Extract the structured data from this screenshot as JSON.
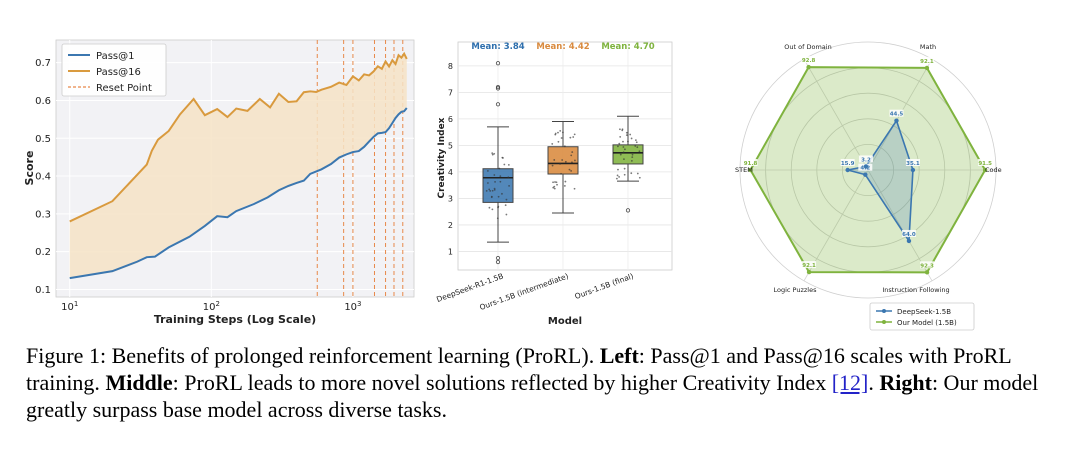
{
  "caption": {
    "figure_label": "Figure 1:",
    "intro": "Benefits of prolonged reinforcement learning (ProRL).",
    "left_label": "Left",
    "left_text": ": Pass@1 and Pass@16 scales with ProRL training.",
    "middle_label": "Middle",
    "middle_text": ": ProRL leads to more novel solutions reflected by higher Creativity Index",
    "ref": "[12]",
    "after_ref": ".",
    "right_label": "Right",
    "right_text": ": Our model greatly surpass base model across diverse tasks."
  },
  "chart_data": [
    {
      "type": "line",
      "title": "",
      "xlabel": "Training Steps (Log Scale)",
      "ylabel": "Score",
      "xscale": "log",
      "xlim": [
        8,
        2700
      ],
      "ylim": [
        0.08,
        0.76
      ],
      "x_ticks": [
        10,
        100,
        1000
      ],
      "x_tick_labels": [
        "10",
        "10",
        "10"
      ],
      "x_tick_exponents": [
        "1",
        "2",
        "3"
      ],
      "y_ticks": [
        0.1,
        0.2,
        0.3,
        0.4,
        0.5,
        0.6,
        0.7
      ],
      "y_tick_labels": [
        "0.1",
        "0.2",
        "0.3",
        "0.4",
        "0.5",
        "0.6",
        "0.7"
      ],
      "grid": true,
      "legend_position": "top-left",
      "legend": [
        "Pass@1",
        "Pass@16",
        "Reset Point"
      ],
      "reset_points": [
        560,
        860,
        1000,
        1420,
        1700,
        1950,
        2250
      ],
      "series": [
        {
          "name": "Pass@1",
          "color": "#3b77b0",
          "x": [
            10,
            20,
            30,
            35,
            40,
            50,
            70,
            90,
            110,
            130,
            150,
            200,
            250,
            300,
            350,
            400,
            450,
            500,
            600,
            700,
            800,
            900,
            1000,
            1100,
            1200,
            1300,
            1400,
            1500,
            1600,
            1700,
            1800,
            1900,
            2000,
            2100,
            2200,
            2300,
            2400
          ],
          "y": [
            0.13,
            0.145,
            0.17,
            0.185,
            0.19,
            0.215,
            0.24,
            0.265,
            0.29,
            0.29,
            0.31,
            0.33,
            0.345,
            0.36,
            0.37,
            0.38,
            0.39,
            0.41,
            0.42,
            0.43,
            0.445,
            0.455,
            0.465,
            0.47,
            0.48,
            0.49,
            0.5,
            0.51,
            0.515,
            0.52,
            0.53,
            0.54,
            0.55,
            0.56,
            0.57,
            0.575,
            0.58
          ]
        },
        {
          "name": "Pass@16",
          "color": "#d99a3e",
          "x": [
            10,
            20,
            30,
            35,
            38,
            42,
            50,
            60,
            75,
            90,
            110,
            130,
            150,
            180,
            220,
            260,
            300,
            350,
            400,
            450,
            500,
            550,
            600,
            700,
            800,
            900,
            1000,
            1100,
            1200,
            1300,
            1400,
            1500,
            1600,
            1700,
            1800,
            1900,
            2000,
            2100,
            2200,
            2300,
            2400
          ],
          "y": [
            0.28,
            0.33,
            0.4,
            0.43,
            0.47,
            0.5,
            0.52,
            0.56,
            0.6,
            0.56,
            0.58,
            0.56,
            0.58,
            0.57,
            0.6,
            0.58,
            0.62,
            0.6,
            0.6,
            0.62,
            0.62,
            0.62,
            0.63,
            0.64,
            0.65,
            0.64,
            0.66,
            0.65,
            0.67,
            0.67,
            0.68,
            0.69,
            0.68,
            0.7,
            0.69,
            0.71,
            0.7,
            0.72,
            0.71,
            0.72,
            0.71
          ]
        }
      ]
    },
    {
      "type": "box",
      "xlabel": "Model",
      "ylabel": "Creativity Index",
      "ylim": [
        0.3,
        8.9
      ],
      "y_ticks": [
        1,
        2,
        3,
        4,
        5,
        6,
        7,
        8
      ],
      "categories": [
        "DeepSeek-R1-1.5B",
        "Ours-1.5B (intermediate)",
        "Ours-1.5B (final)"
      ],
      "means_labels": [
        "Mean: 3.84",
        "Mean: 4.42",
        "Mean: 4.70"
      ],
      "means": [
        3.84,
        4.42,
        4.7
      ],
      "colors": [
        "#3b77b0",
        "#d98a3e",
        "#7fb33e"
      ],
      "mean_label_colors": [
        "#2e6fad",
        "#d98a3e",
        "#7fb33e"
      ],
      "boxes": [
        {
          "whisker_low": 1.35,
          "q1": 2.85,
          "median": 3.78,
          "q3": 4.12,
          "whisker_high": 5.7,
          "outliers": [
            0.6,
            0.75,
            6.55,
            7.15,
            7.2,
            8.1
          ]
        },
        {
          "whisker_low": 2.45,
          "q1": 3.92,
          "median": 4.32,
          "q3": 4.95,
          "whisker_high": 5.9,
          "outliers": []
        },
        {
          "whisker_low": 3.65,
          "q1": 4.3,
          "median": 4.72,
          "q3": 5.02,
          "whisker_high": 6.1,
          "outliers": [
            2.55
          ]
        }
      ]
    },
    {
      "type": "radar",
      "axes": [
        "Math",
        "Code",
        "Instruction Following",
        "Logic Puzzles",
        "STEM",
        "Out of Domain"
      ],
      "series": [
        {
          "name": "DeepSeek-1.5B",
          "color": "#3b77b0",
          "values": [
            44.5,
            35.1,
            64.0,
            4.2,
            15.9,
            3.2
          ],
          "labels": [
            "44.5",
            "35.1",
            "64.0",
            "4.2",
            "15.9",
            "3.2"
          ]
        },
        {
          "name": "Our Model (1.5B)",
          "color": "#7fb33e",
          "values": [
            92.1,
            91.5,
            92.3,
            92.1,
            91.8,
            92.8
          ],
          "labels": [
            "92.1",
            "91.5",
            "92.3",
            "92.1",
            "91.8",
            "92.8"
          ]
        }
      ],
      "legend_position": "bottom-right"
    }
  ]
}
